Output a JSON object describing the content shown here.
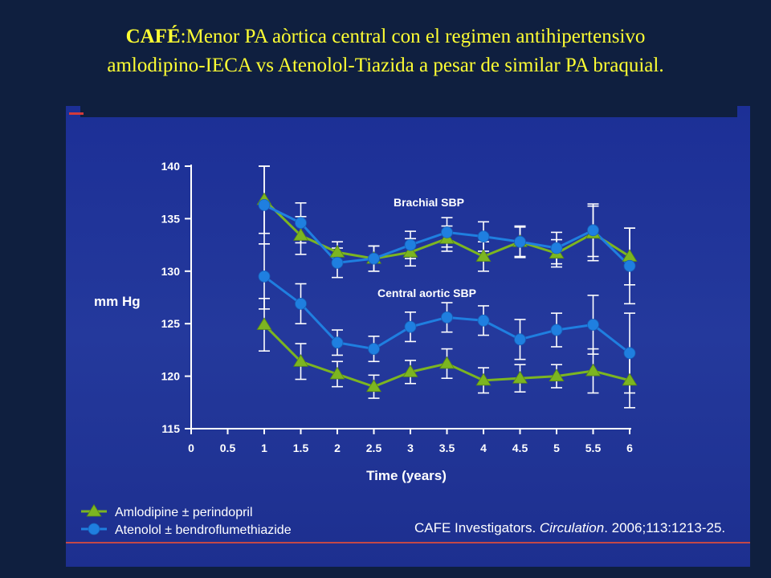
{
  "slide": {
    "title_bold": "CAFÉ",
    "title_rest": ":Menor PA aòrtica central con el regimen antihipertensivo amlodipino-IECA vs Atenolol-Tiazida a pesar de similar PA braquial.",
    "citation_prefix": "CAFE Investigators. ",
    "citation_journal": "Circulation",
    "citation_suffix": ". 2006;113:1213-25."
  },
  "chart_data": {
    "type": "line",
    "title": "",
    "xlabel": "Time (years)",
    "ylabel": "mm Hg",
    "xlim": [
      0,
      6
    ],
    "ylim": [
      115,
      140
    ],
    "x_ticks": [
      0,
      0.5,
      1,
      1.5,
      2,
      2.5,
      3,
      3.5,
      4,
      4.5,
      5,
      5.5,
      6
    ],
    "y_ticks": [
      115,
      120,
      125,
      130,
      135,
      140
    ],
    "x": [
      1,
      1.5,
      2,
      2.5,
      3,
      3.5,
      4,
      4.5,
      5,
      5.5,
      6
    ],
    "annotations": [
      "Brachial SBP",
      "Central aortic SBP"
    ],
    "legend_position": "bottom-left",
    "colors": {
      "amlodipine": "#7cb521",
      "atenolol": "#1f7fe0",
      "error_bar": "#ffffff"
    },
    "series": [
      {
        "name": "Amlodipine ± perindopril",
        "marker": "triangle",
        "group": "brachial",
        "values": [
          136.8,
          133.4,
          131.8,
          131.2,
          131.8,
          133.1,
          131.4,
          132.8,
          131.7,
          133.6,
          131.4
        ],
        "error": [
          3.2,
          1.8,
          1.0,
          1.2,
          1.3,
          1.2,
          1.4,
          1.4,
          1.3,
          2.6,
          2.7
        ]
      },
      {
        "name": "Atenolol ± bendroflumethiazide",
        "marker": "circle",
        "group": "brachial",
        "values": [
          136.3,
          134.6,
          130.8,
          131.2,
          132.5,
          133.7,
          133.3,
          132.8,
          132.2,
          133.9,
          130.5
        ],
        "error": [
          3.7,
          1.9,
          1.4,
          1.2,
          1.3,
          1.4,
          1.4,
          1.5,
          1.5,
          2.5,
          3.6
        ]
      },
      {
        "name": "Amlodipine ± perindopril",
        "marker": "triangle",
        "group": "central",
        "values": [
          124.9,
          121.4,
          120.2,
          119.0,
          120.4,
          121.2,
          119.6,
          119.8,
          120.0,
          120.5,
          119.6
        ],
        "error": [
          2.5,
          1.7,
          1.2,
          1.1,
          1.1,
          1.4,
          1.2,
          1.3,
          1.1,
          2.1,
          2.6
        ]
      },
      {
        "name": "Atenolol ± bendroflumethiazide",
        "marker": "circle",
        "group": "central",
        "values": [
          129.5,
          126.9,
          123.2,
          122.6,
          124.7,
          125.6,
          125.3,
          123.5,
          124.4,
          124.9,
          122.2
        ],
        "error": [
          3.1,
          1.9,
          1.2,
          1.2,
          1.4,
          1.4,
          1.4,
          1.9,
          1.6,
          2.8,
          3.8
        ]
      }
    ],
    "legend": [
      {
        "label": "Amlodipine ± perindopril",
        "marker": "triangle",
        "color": "#7cb521"
      },
      {
        "label": "Atenolol ± bendroflumethiazide",
        "marker": "circle",
        "color": "#1f7fe0"
      }
    ]
  }
}
